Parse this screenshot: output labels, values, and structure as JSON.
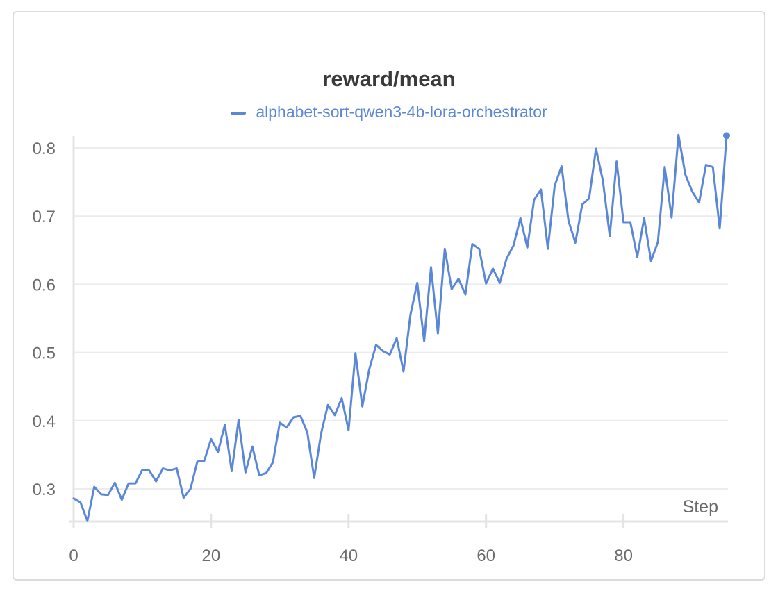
{
  "chart_data": {
    "type": "line",
    "title": "reward/mean",
    "xlabel": "Step",
    "ylabel": "",
    "xlim": [
      0,
      95
    ],
    "ylim": [
      0.25,
      0.82
    ],
    "xticks": [
      0,
      20,
      40,
      60,
      80
    ],
    "yticks": [
      0.3,
      0.4,
      0.5,
      0.6,
      0.7,
      0.8
    ],
    "ytick_labels": [
      "0.3",
      "0.4",
      "0.5",
      "0.6",
      "0.7",
      "0.8"
    ],
    "grid": true,
    "legend_position": "top-center",
    "series": [
      {
        "name": "alphabet-sort-qwen3-4b-lora-orchestrator",
        "color": "#5b87d9",
        "x": [
          0,
          1,
          2,
          3,
          4,
          5,
          6,
          7,
          8,
          9,
          10,
          11,
          12,
          13,
          14,
          15,
          16,
          17,
          18,
          19,
          20,
          21,
          22,
          23,
          24,
          25,
          26,
          27,
          28,
          29,
          30,
          31,
          32,
          33,
          34,
          35,
          36,
          37,
          38,
          39,
          40,
          41,
          42,
          43,
          44,
          45,
          46,
          47,
          48,
          49,
          50,
          51,
          52,
          53,
          54,
          55,
          56,
          57,
          58,
          59,
          60,
          61,
          62,
          63,
          64,
          65,
          66,
          67,
          68,
          69,
          70,
          71,
          72,
          73,
          74,
          75,
          76,
          77,
          78,
          79,
          80,
          81,
          82,
          83,
          84,
          85,
          86,
          87,
          88,
          89,
          90,
          91,
          92,
          93,
          94,
          95
        ],
        "values": [
          0.286,
          0.28,
          0.253,
          0.303,
          0.292,
          0.291,
          0.309,
          0.284,
          0.308,
          0.308,
          0.328,
          0.327,
          0.311,
          0.33,
          0.327,
          0.33,
          0.287,
          0.3,
          0.34,
          0.341,
          0.373,
          0.354,
          0.394,
          0.326,
          0.401,
          0.324,
          0.362,
          0.32,
          0.323,
          0.339,
          0.397,
          0.39,
          0.405,
          0.407,
          0.383,
          0.316,
          0.381,
          0.423,
          0.408,
          0.433,
          0.386,
          0.499,
          0.421,
          0.475,
          0.511,
          0.502,
          0.497,
          0.521,
          0.472,
          0.555,
          0.602,
          0.517,
          0.625,
          0.528,
          0.652,
          0.593,
          0.608,
          0.585,
          0.659,
          0.652,
          0.601,
          0.623,
          0.602,
          0.638,
          0.657,
          0.697,
          0.654,
          0.724,
          0.739,
          0.652,
          0.745,
          0.773,
          0.693,
          0.661,
          0.717,
          0.726,
          0.799,
          0.752,
          0.671,
          0.78,
          0.691,
          0.691,
          0.64,
          0.697,
          0.634,
          0.662,
          0.772,
          0.698,
          0.819,
          0.761,
          0.736,
          0.72,
          0.775,
          0.772,
          0.682,
          0.818
        ]
      }
    ]
  }
}
